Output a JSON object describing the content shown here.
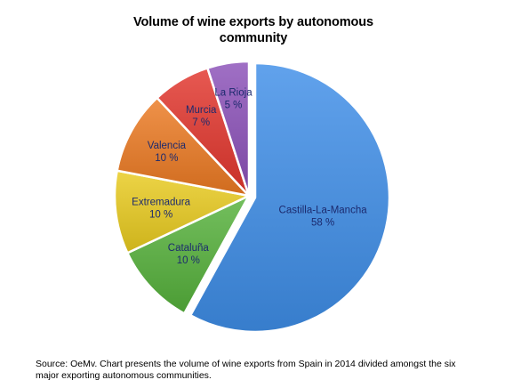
{
  "chart_data": {
    "type": "pie",
    "title": "Volume of wine exports by autonomous community",
    "categories": [
      "Castilla-La-Mancha",
      "Cataluña",
      "Extremadura",
      "Valencia",
      "Murcia",
      "La Rioja"
    ],
    "values": [
      58,
      10,
      10,
      10,
      7,
      5
    ],
    "value_labels": [
      "58 %",
      "10 %",
      "10 %",
      "10 %",
      "7 %",
      "5 %"
    ],
    "unit": "%",
    "colors": [
      "#3e8ee8",
      "#55b13b",
      "#e9cb1f",
      "#ec7a22",
      "#e2352c",
      "#8b50b8"
    ],
    "label_color": "#1c2a6e",
    "exploded": "Castilla-La-Mancha",
    "legend": "none",
    "grid": false
  },
  "source": "Source: OeMv. Chart presents the volume of wine exports from Spain in 2014 divided amongst the six major exporting autonomous communities."
}
